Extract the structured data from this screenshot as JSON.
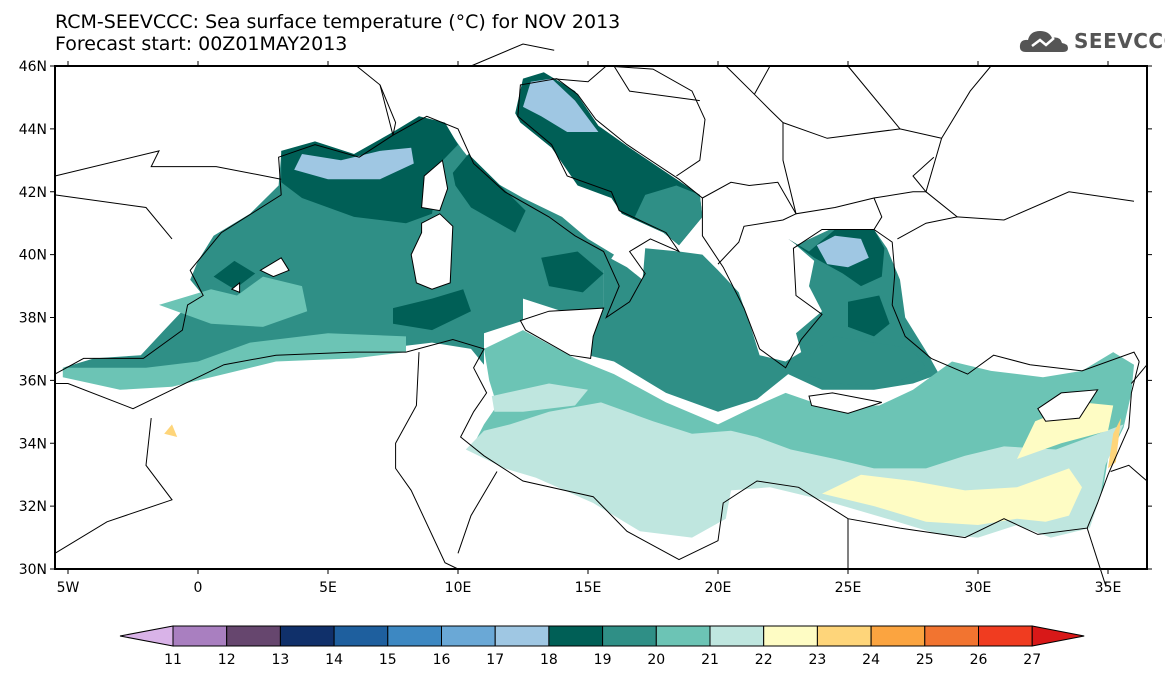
{
  "title": {
    "line1": "RCM-SEEVCCC: Sea surface temperature (°C) for NOV 2013",
    "line2": "Forecast start: 00Z01MAY2013"
  },
  "logo": {
    "text": "SEEVCCC",
    "icon": "cloud-icon"
  },
  "map": {
    "lon_range": [
      -5.5,
      36.5
    ],
    "lat_range": [
      30,
      46
    ],
    "lat_ticks": [
      "46N",
      "44N",
      "42N",
      "40N",
      "38N",
      "36N",
      "34N",
      "32N",
      "30N"
    ],
    "lat_values": [
      46,
      44,
      42,
      40,
      38,
      36,
      34,
      32,
      30
    ],
    "lon_ticks": [
      "5W",
      "0",
      "5E",
      "10E",
      "15E",
      "20E",
      "25E",
      "30E",
      "35E"
    ],
    "lon_values": [
      -5,
      0,
      5,
      10,
      15,
      20,
      25,
      30,
      35
    ]
  },
  "colorbar": {
    "labels": [
      "11",
      "12",
      "13",
      "14",
      "15",
      "16",
      "17",
      "18",
      "19",
      "20",
      "21",
      "22",
      "23",
      "24",
      "25",
      "26",
      "27"
    ],
    "colors": [
      "#d9b3e8",
      "#a97fc0",
      "#66466e",
      "#10306a",
      "#1e5f9e",
      "#3d88c2",
      "#6aa8d6",
      "#9fc7e3",
      "#005f56",
      "#2f8f86",
      "#6cc4b5",
      "#bfe6df",
      "#fefcc4",
      "#fed57a",
      "#fba440",
      "#f27430",
      "#f03c20",
      "#d81818"
    ]
  }
}
